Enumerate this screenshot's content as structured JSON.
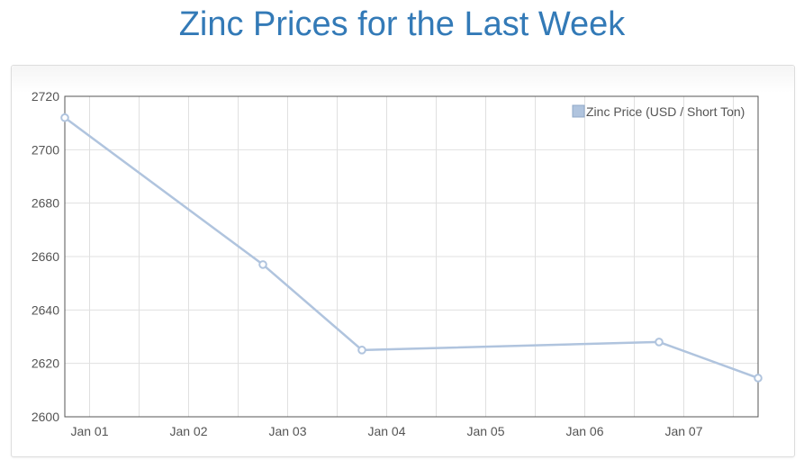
{
  "page": {
    "title": "Zinc Prices for the Last Week"
  },
  "chart_data": {
    "type": "line",
    "title": "Zinc Prices for the Last Week",
    "xlabel": "",
    "ylabel": "",
    "x_tick_labels": [
      "Jan 01",
      "Jan 02",
      "Jan 03",
      "Jan 04",
      "Jan 05",
      "Jan 06",
      "Jan 07"
    ],
    "y_ticks": [
      2600,
      2620,
      2640,
      2660,
      2680,
      2700,
      2720
    ],
    "ylim": [
      2600,
      2720
    ],
    "xlim_days": [
      -0.25,
      6.75
    ],
    "grid": true,
    "legend_position": "top-right",
    "series": [
      {
        "name": "Zinc Price (USD / Short Ton)",
        "color": "#b0c4de",
        "points": [
          {
            "date": "Jan 01",
            "x": -0.25,
            "y": 2712
          },
          {
            "date": "Jan 03",
            "x": 1.75,
            "y": 2657
          },
          {
            "date": "Jan 04",
            "x": 2.75,
            "y": 2625
          },
          {
            "date": "Jan 06",
            "x": 5.75,
            "y": 2628
          },
          {
            "date": "Jan 07",
            "x": 6.75,
            "y": 2614.5
          }
        ]
      }
    ]
  }
}
